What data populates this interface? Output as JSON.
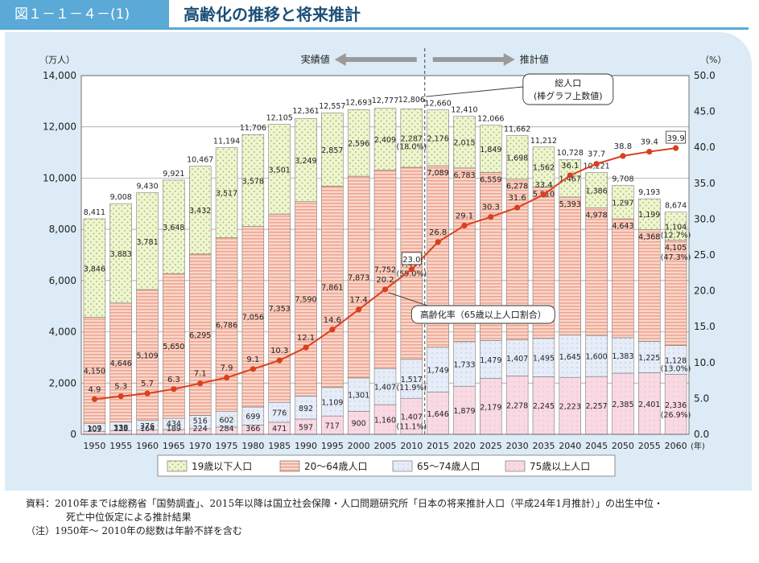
{
  "header": {
    "figure_number": "図１－１－４－(1)",
    "title": "高齢化の推移と将来推計"
  },
  "colors": {
    "under19": "#eef5cf",
    "age20_64": "#f6c6b6",
    "age65_74": "#dfe8f7",
    "age75plus": "#f8d2de",
    "line": "#d8401e",
    "panel": "#dcebf5",
    "accent": "#5aa9d6"
  },
  "chart_data": {
    "type": "bar",
    "stacked": true,
    "unit_left": "（万人）",
    "unit_right": "（%）",
    "year_unit": "(年)",
    "categories": [
      "1950",
      "1955",
      "1960",
      "1965",
      "1970",
      "1975",
      "1980",
      "1985",
      "1990",
      "1995",
      "2000",
      "2005",
      "2010",
      "2015",
      "2020",
      "2025",
      "2030",
      "2035",
      "2040",
      "2045",
      "2050",
      "2055",
      "2060"
    ],
    "ylim": [
      0,
      14000
    ],
    "yticks": [
      "0",
      "2,000",
      "4,000",
      "6,000",
      "8,000",
      "10,000",
      "12,000",
      "14,000"
    ],
    "y2lim": [
      0,
      50
    ],
    "y2ticks": [
      "0.0",
      "5.0",
      "10.0",
      "15.0",
      "20.0",
      "25.0",
      "30.0",
      "35.0",
      "40.0",
      "45.0",
      "50.0"
    ],
    "series": [
      {
        "name": "75歳以上人口",
        "values": [
          107,
          139,
          164,
          189,
          224,
          284,
          366,
          471,
          597,
          717,
          900,
          1160,
          1407,
          1646,
          1879,
          2179,
          2278,
          2245,
          2223,
          2257,
          2385,
          2401,
          2336
        ],
        "labels": [
          "107",
          "139",
          "164",
          "189",
          "224",
          "284",
          "366",
          "471",
          "597",
          "717",
          "900",
          "1,160",
          "1,407",
          "1,646",
          "1,879",
          "2,179",
          "2,278",
          "2,245",
          "2,223",
          "2,257",
          "2,385",
          "2,401",
          "2,336"
        ]
      },
      {
        "name": "65～74歳人口",
        "values": [
          309,
          338,
          376,
          434,
          516,
          602,
          699,
          776,
          892,
          1109,
          1301,
          1407,
          1517,
          1749,
          1733,
          1479,
          1407,
          1495,
          1645,
          1600,
          1383,
          1225,
          1128
        ],
        "labels": [
          "309",
          "338",
          "376",
          "434",
          "516",
          "602",
          "699",
          "776",
          "892",
          "1,109",
          "1,301",
          "1,407",
          "1,517",
          "1,749",
          "1,733",
          "1,479",
          "1,407",
          "1,495",
          "1,645",
          "1,600",
          "1,383",
          "1,225",
          "1,128"
        ]
      },
      {
        "name": "20～64歳人口",
        "values": [
          4150,
          4646,
          5109,
          5650,
          6295,
          6786,
          7056,
          7353,
          7590,
          7861,
          7873,
          7752,
          7497,
          7089,
          6783,
          6559,
          6278,
          5910,
          5393,
          4978,
          4643,
          4368,
          4105
        ],
        "labels": [
          "4,150",
          "4,646",
          "5,109",
          "5,650",
          "6,295",
          "6,786",
          "7,056",
          "7,353",
          "7,590",
          "7,861",
          "7,873",
          "7,752",
          "7,497",
          "7,089",
          "6,783",
          "6,559",
          "6,278",
          "5,910",
          "5,393",
          "4,978",
          "4,643",
          "4,368",
          "4,105"
        ]
      },
      {
        "name": "19歳以下人口",
        "values": [
          3846,
          3883,
          3781,
          3648,
          3432,
          3517,
          3578,
          3501,
          3249,
          2857,
          2596,
          2409,
          2287,
          2176,
          2015,
          1849,
          1698,
          1562,
          1467,
          1386,
          1297,
          1199,
          1104
        ],
        "labels": [
          "3,846",
          "3,883",
          "3,781",
          "3,648",
          "3,432",
          "3,517",
          "3,578",
          "3,501",
          "3,249",
          "2,857",
          "2,596",
          "2,409",
          "2,287",
          "2,176",
          "2,015",
          "1,849",
          "1,698",
          "1,562",
          "1,467",
          "1,386",
          "1,297",
          "1,199",
          "1,104"
        ]
      }
    ],
    "totals": [
      8411,
      9008,
      9430,
      9921,
      10467,
      11194,
      11706,
      12105,
      12361,
      12557,
      12693,
      12777,
      12806,
      12660,
      12410,
      12066,
      11662,
      11212,
      10728,
      10221,
      9708,
      9193,
      8674
    ],
    "total_labels": [
      "8,411",
      "9,008",
      "9,430",
      "9,921",
      "10,467",
      "11,194",
      "11,706",
      "12,105",
      "12,361",
      "12,557",
      "12,693",
      "12,777",
      "12,806",
      "12,660",
      "12,410",
      "12,066",
      "11,662",
      "11,212",
      "10,728",
      "10,221",
      "9,708",
      "9,193",
      "8,674"
    ],
    "aging_rate": [
      4.9,
      5.3,
      5.7,
      6.3,
      7.1,
      7.9,
      9.1,
      10.3,
      12.1,
      14.6,
      17.4,
      20.2,
      23.0,
      26.8,
      29.1,
      30.3,
      31.6,
      33.4,
      36.1,
      37.7,
      38.8,
      39.4,
      39.9
    ],
    "aging_rate_labels": [
      "4.9",
      "5.3",
      "5.7",
      "6.3",
      "7.1",
      "7.9",
      "9.1",
      "10.3",
      "12.1",
      "14.6",
      "17.4",
      "20.2",
      "23.0",
      "26.8",
      "29.1",
      "30.3",
      "31.6",
      "33.4",
      "36.1",
      "37.7",
      "38.8",
      "39.4",
      "39.9"
    ],
    "share_labels": [
      {
        "year_index": 12,
        "series": "19歳以下人口",
        "text": "(18.0%)"
      },
      {
        "year_index": 12,
        "series": "20～64歳人口",
        "text": "(59.0%)"
      },
      {
        "year_index": 12,
        "series": "65～74歳人口",
        "text": "(11.9%)"
      },
      {
        "year_index": 12,
        "series": "75歳以上人口",
        "text": "(11.1%)"
      },
      {
        "year_index": 22,
        "series": "19歳以下人口",
        "text": "(12.7%)"
      },
      {
        "year_index": 22,
        "series": "20～64歳人口",
        "text": "(47.3%)"
      },
      {
        "year_index": 22,
        "series": "65～74歳人口",
        "text": "(13.0%)"
      },
      {
        "year_index": 22,
        "series": "75歳以上人口",
        "text": "(26.9%)"
      }
    ],
    "annotations": {
      "actual": "実績値",
      "projected": "推計値",
      "total_callout_line1": "総人口",
      "total_callout_line2": "(棒グラフ上数値)",
      "rate_callout": "高齢化率（65歳以上人口割合）"
    },
    "legend_position": "bottom"
  },
  "notes": {
    "source_line1": "資料：2010年までは総務省「国勢調査」、2015年以降は国立社会保障・人口問題研究所「日本の将来推計人口（平成24年1月推計）」の出生中位・",
    "source_line2": "死亡中位仮定による推計結果",
    "note": "（注）1950年～ 2010年の総数は年齢不詳を含む"
  }
}
